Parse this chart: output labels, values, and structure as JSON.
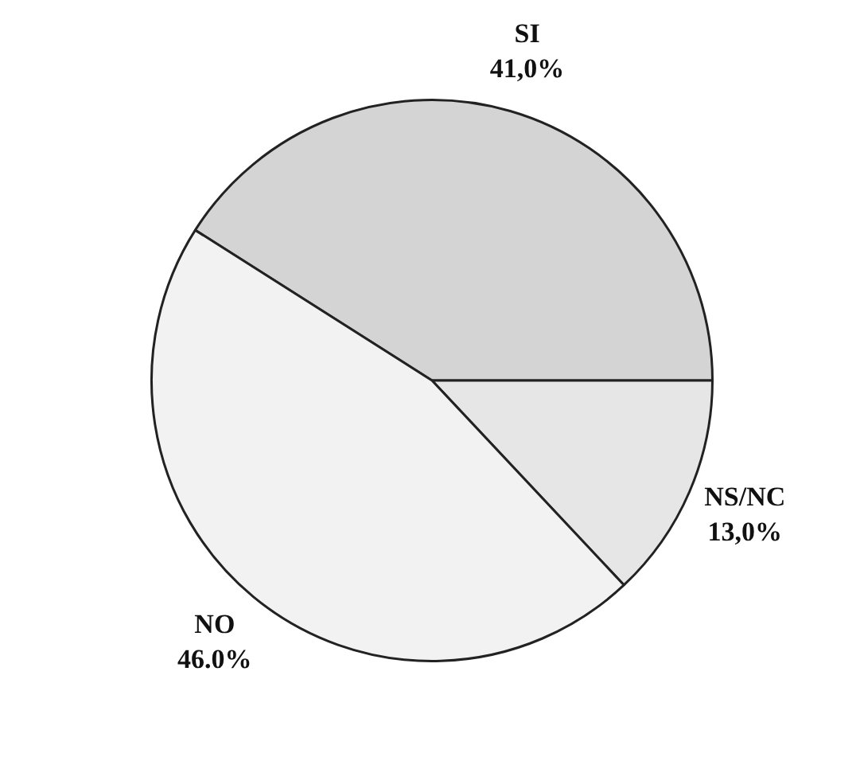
{
  "chart_data": {
    "type": "pie",
    "categories": [
      "SI",
      "NS/NC",
      "NO"
    ],
    "values": [
      41,
      13,
      46
    ],
    "colors": [
      "#d4d4d4",
      "#e6e6e6",
      "#f2f2f2"
    ],
    "value_labels": [
      "41,0%",
      "13,0%",
      "46.0%"
    ],
    "legend": false
  }
}
